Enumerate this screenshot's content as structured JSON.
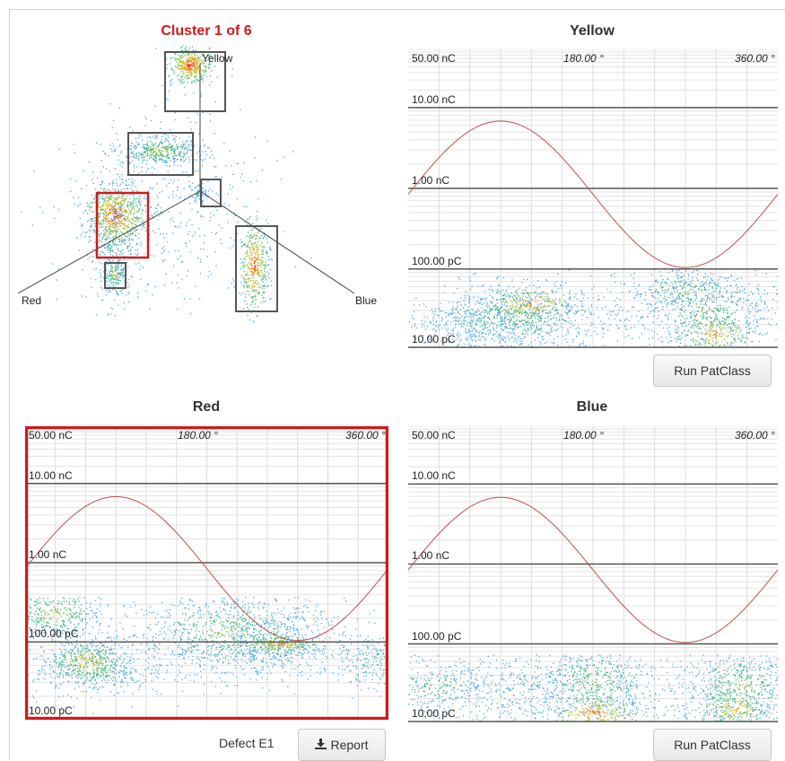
{
  "cluster_panel": {
    "title": "Cluster 1 of 6",
    "axis_labels": {
      "top": "Yellow",
      "left": "Red",
      "right": "Blue"
    },
    "colors": {
      "selected": "#d0191c",
      "box": "#555555"
    }
  },
  "charge_axis": {
    "top": "50.00 nC",
    "l1": "10.00 nC",
    "l2": "1.00 nC",
    "l3": "100.00 pC",
    "bottom": "10.00 pC"
  },
  "phase_axis": {
    "mid": "180.00 °",
    "end": "360.00 °"
  },
  "panels": {
    "yellow": {
      "title": "Yellow",
      "button_label": "Run PatClass"
    },
    "red": {
      "title": "Red",
      "defect_label": "Defect E1",
      "report_label": "Report",
      "selected_color": "#d0191c"
    },
    "blue": {
      "title": "Blue",
      "button_label": "Run PatClass"
    }
  }
}
